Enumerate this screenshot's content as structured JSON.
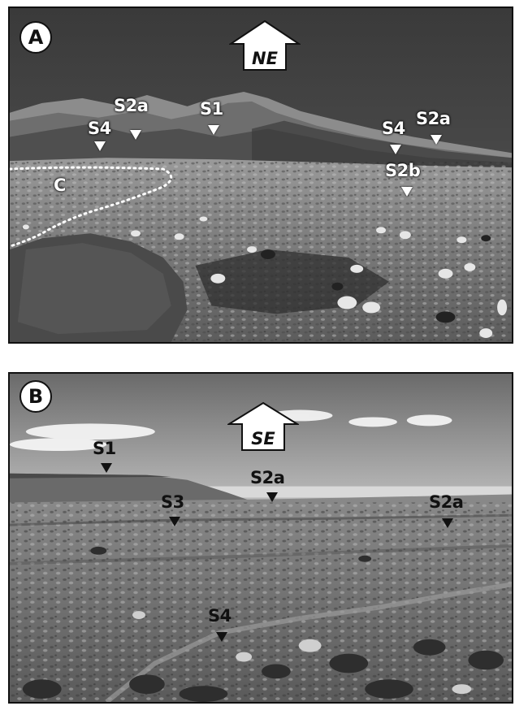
{
  "panel_a": {
    "badge": "A",
    "direction": "NE",
    "stations": [
      {
        "label": "S2a",
        "color": "white"
      },
      {
        "label": "S1",
        "color": "white"
      },
      {
        "label": "S4",
        "color": "white"
      },
      {
        "label": "S4",
        "color": "white"
      },
      {
        "label": "S2a",
        "color": "white"
      },
      {
        "label": "S2b",
        "color": "white"
      }
    ],
    "feature_label": "C"
  },
  "panel_b": {
    "badge": "B",
    "direction": "SE",
    "stations": [
      {
        "label": "S1",
        "color": "black"
      },
      {
        "label": "S2a",
        "color": "black"
      },
      {
        "label": "S3",
        "color": "black"
      },
      {
        "label": "S2a",
        "color": "black"
      },
      {
        "label": "S4",
        "color": "black"
      }
    ]
  }
}
